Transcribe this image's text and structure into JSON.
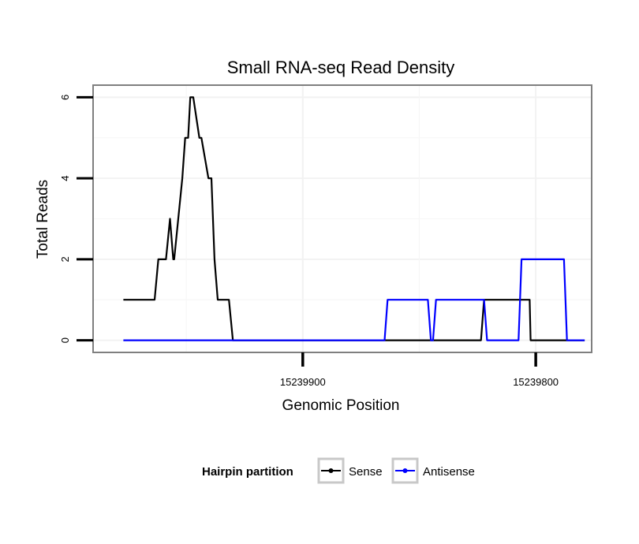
{
  "chart_data": {
    "type": "line",
    "title": "Small RNA-seq Read Density",
    "xlabel": "Genomic Position",
    "ylabel": "Total Reads",
    "x_reversed": true,
    "xlim": [
      15239990,
      15239776
    ],
    "ylim": [
      -0.3,
      6.3
    ],
    "x_ticks": [
      15239900,
      15239800
    ],
    "x_tick_labels": [
      "15239900",
      "15239800"
    ],
    "y_ticks": [
      0,
      2,
      4,
      6
    ],
    "y_tick_labels": [
      "0",
      "2",
      "4",
      "6"
    ],
    "grid": true,
    "legend": {
      "title": "Hairpin partition",
      "position": "bottom",
      "entries": [
        {
          "label": "Sense",
          "color": "#000000"
        },
        {
          "label": "Antisense",
          "color": "#0000ff"
        }
      ]
    },
    "series": [
      {
        "name": "Sense",
        "color": "#000000",
        "x": [
          15239977,
          15239963.6,
          15239962,
          15239958.7,
          15239957,
          15239955.6,
          15239955.2,
          15239951.7,
          15239950.5,
          15239949.2,
          15239948.3,
          15239947,
          15239944.4,
          15239943.5,
          15239940.5,
          15239939.2,
          15239937.9,
          15239936.5,
          15239932.6,
          15239931.7,
          15239930,
          15239929.2,
          15239928.3,
          15239926.1,
          15239925.2,
          15239823.5,
          15239822.2,
          15239803.5,
          15239802.6,
          15239802.2,
          15239779
        ],
        "values": [
          1,
          1,
          2,
          2,
          3,
          2,
          2,
          4,
          5,
          5,
          6,
          6,
          5,
          5,
          4,
          4,
          2,
          1,
          1,
          1,
          0,
          0,
          0,
          0,
          0,
          0,
          1,
          1,
          1,
          0,
          0
        ]
      },
      {
        "name": "Antisense",
        "color": "#0000ff",
        "x": [
          15239977,
          15239864.9,
          15239863.6,
          15239846.3,
          15239845,
          15239844.1,
          15239842.8,
          15239822.2,
          15239820.9,
          15239807.4,
          15239806.1,
          15239787.9,
          15239786.6,
          15239779
        ],
        "values": [
          0,
          0,
          1,
          1,
          0,
          0,
          1,
          1,
          0,
          0,
          2,
          2,
          0,
          0
        ]
      }
    ]
  }
}
